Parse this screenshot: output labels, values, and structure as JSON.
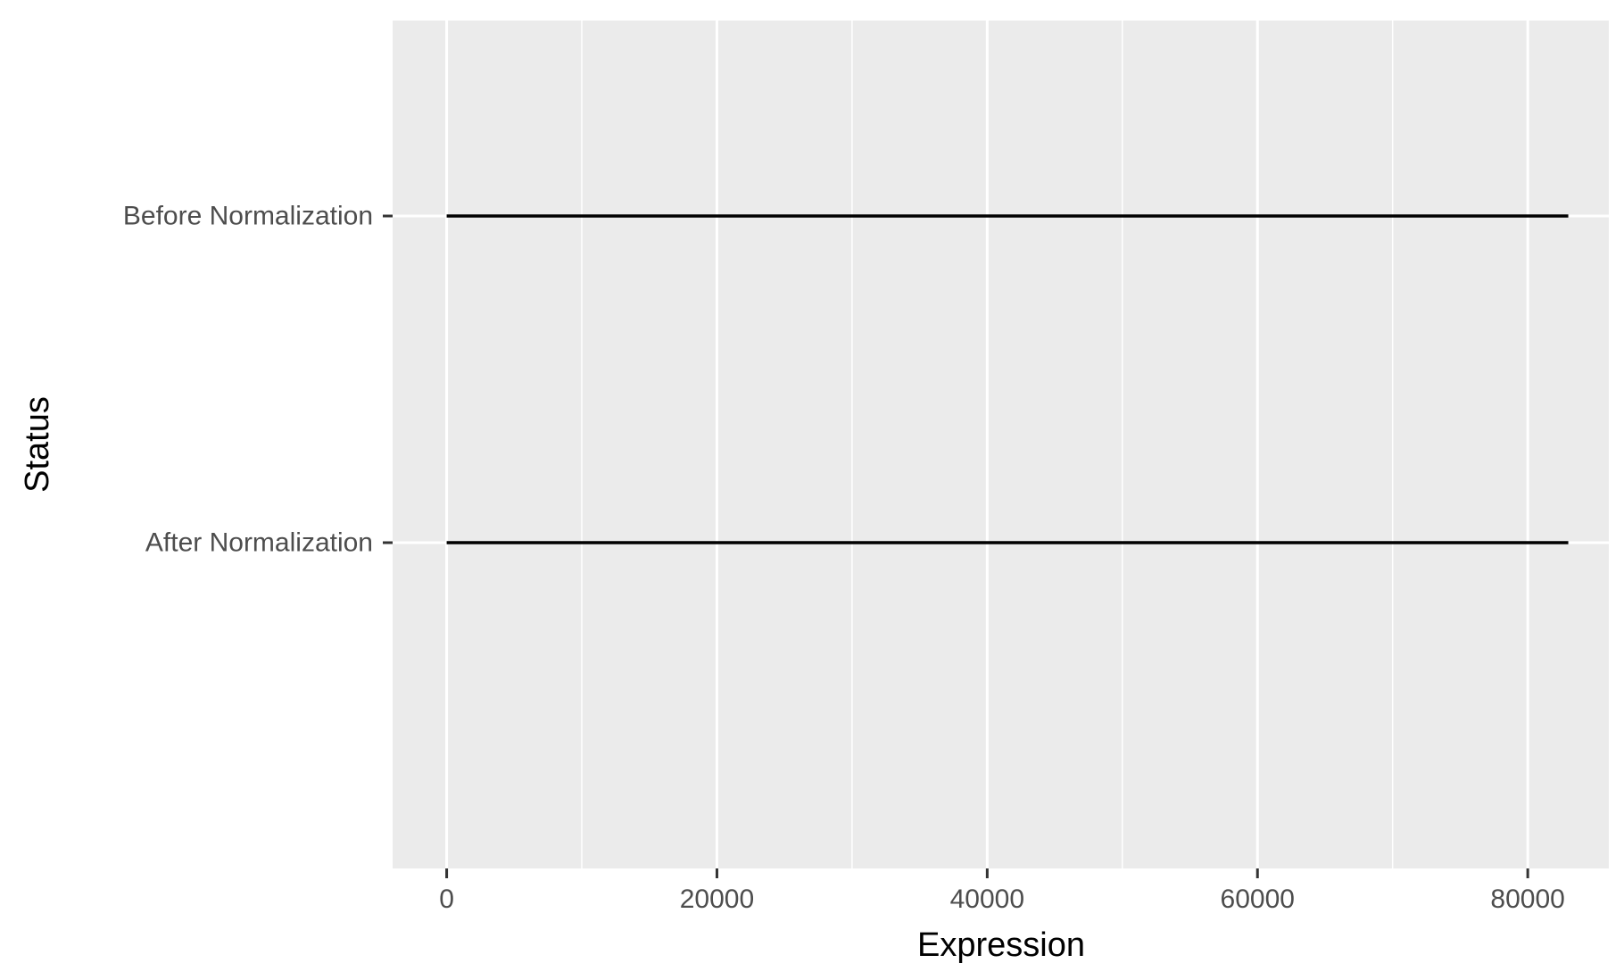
{
  "chart_data": {
    "type": "range",
    "xlabel": "Expression",
    "ylabel": "Status",
    "xlim": [
      -4000,
      86000
    ],
    "x_ticks": [
      0,
      20000,
      40000,
      60000,
      80000
    ],
    "x_minor_ticks": [
      10000,
      30000,
      50000,
      70000
    ],
    "categories": [
      "After Normalization",
      "Before Normalization"
    ],
    "series": [
      {
        "category": "Before Normalization",
        "min": 0,
        "max": 83000
      },
      {
        "category": "After Normalization",
        "min": 0,
        "max": 83000
      }
    ],
    "grid": true,
    "legend": "none",
    "colors": {
      "panel": "#ebebeb",
      "grid": "#ffffff",
      "line": "#000000",
      "tick_text": "#4d4d4d"
    }
  }
}
